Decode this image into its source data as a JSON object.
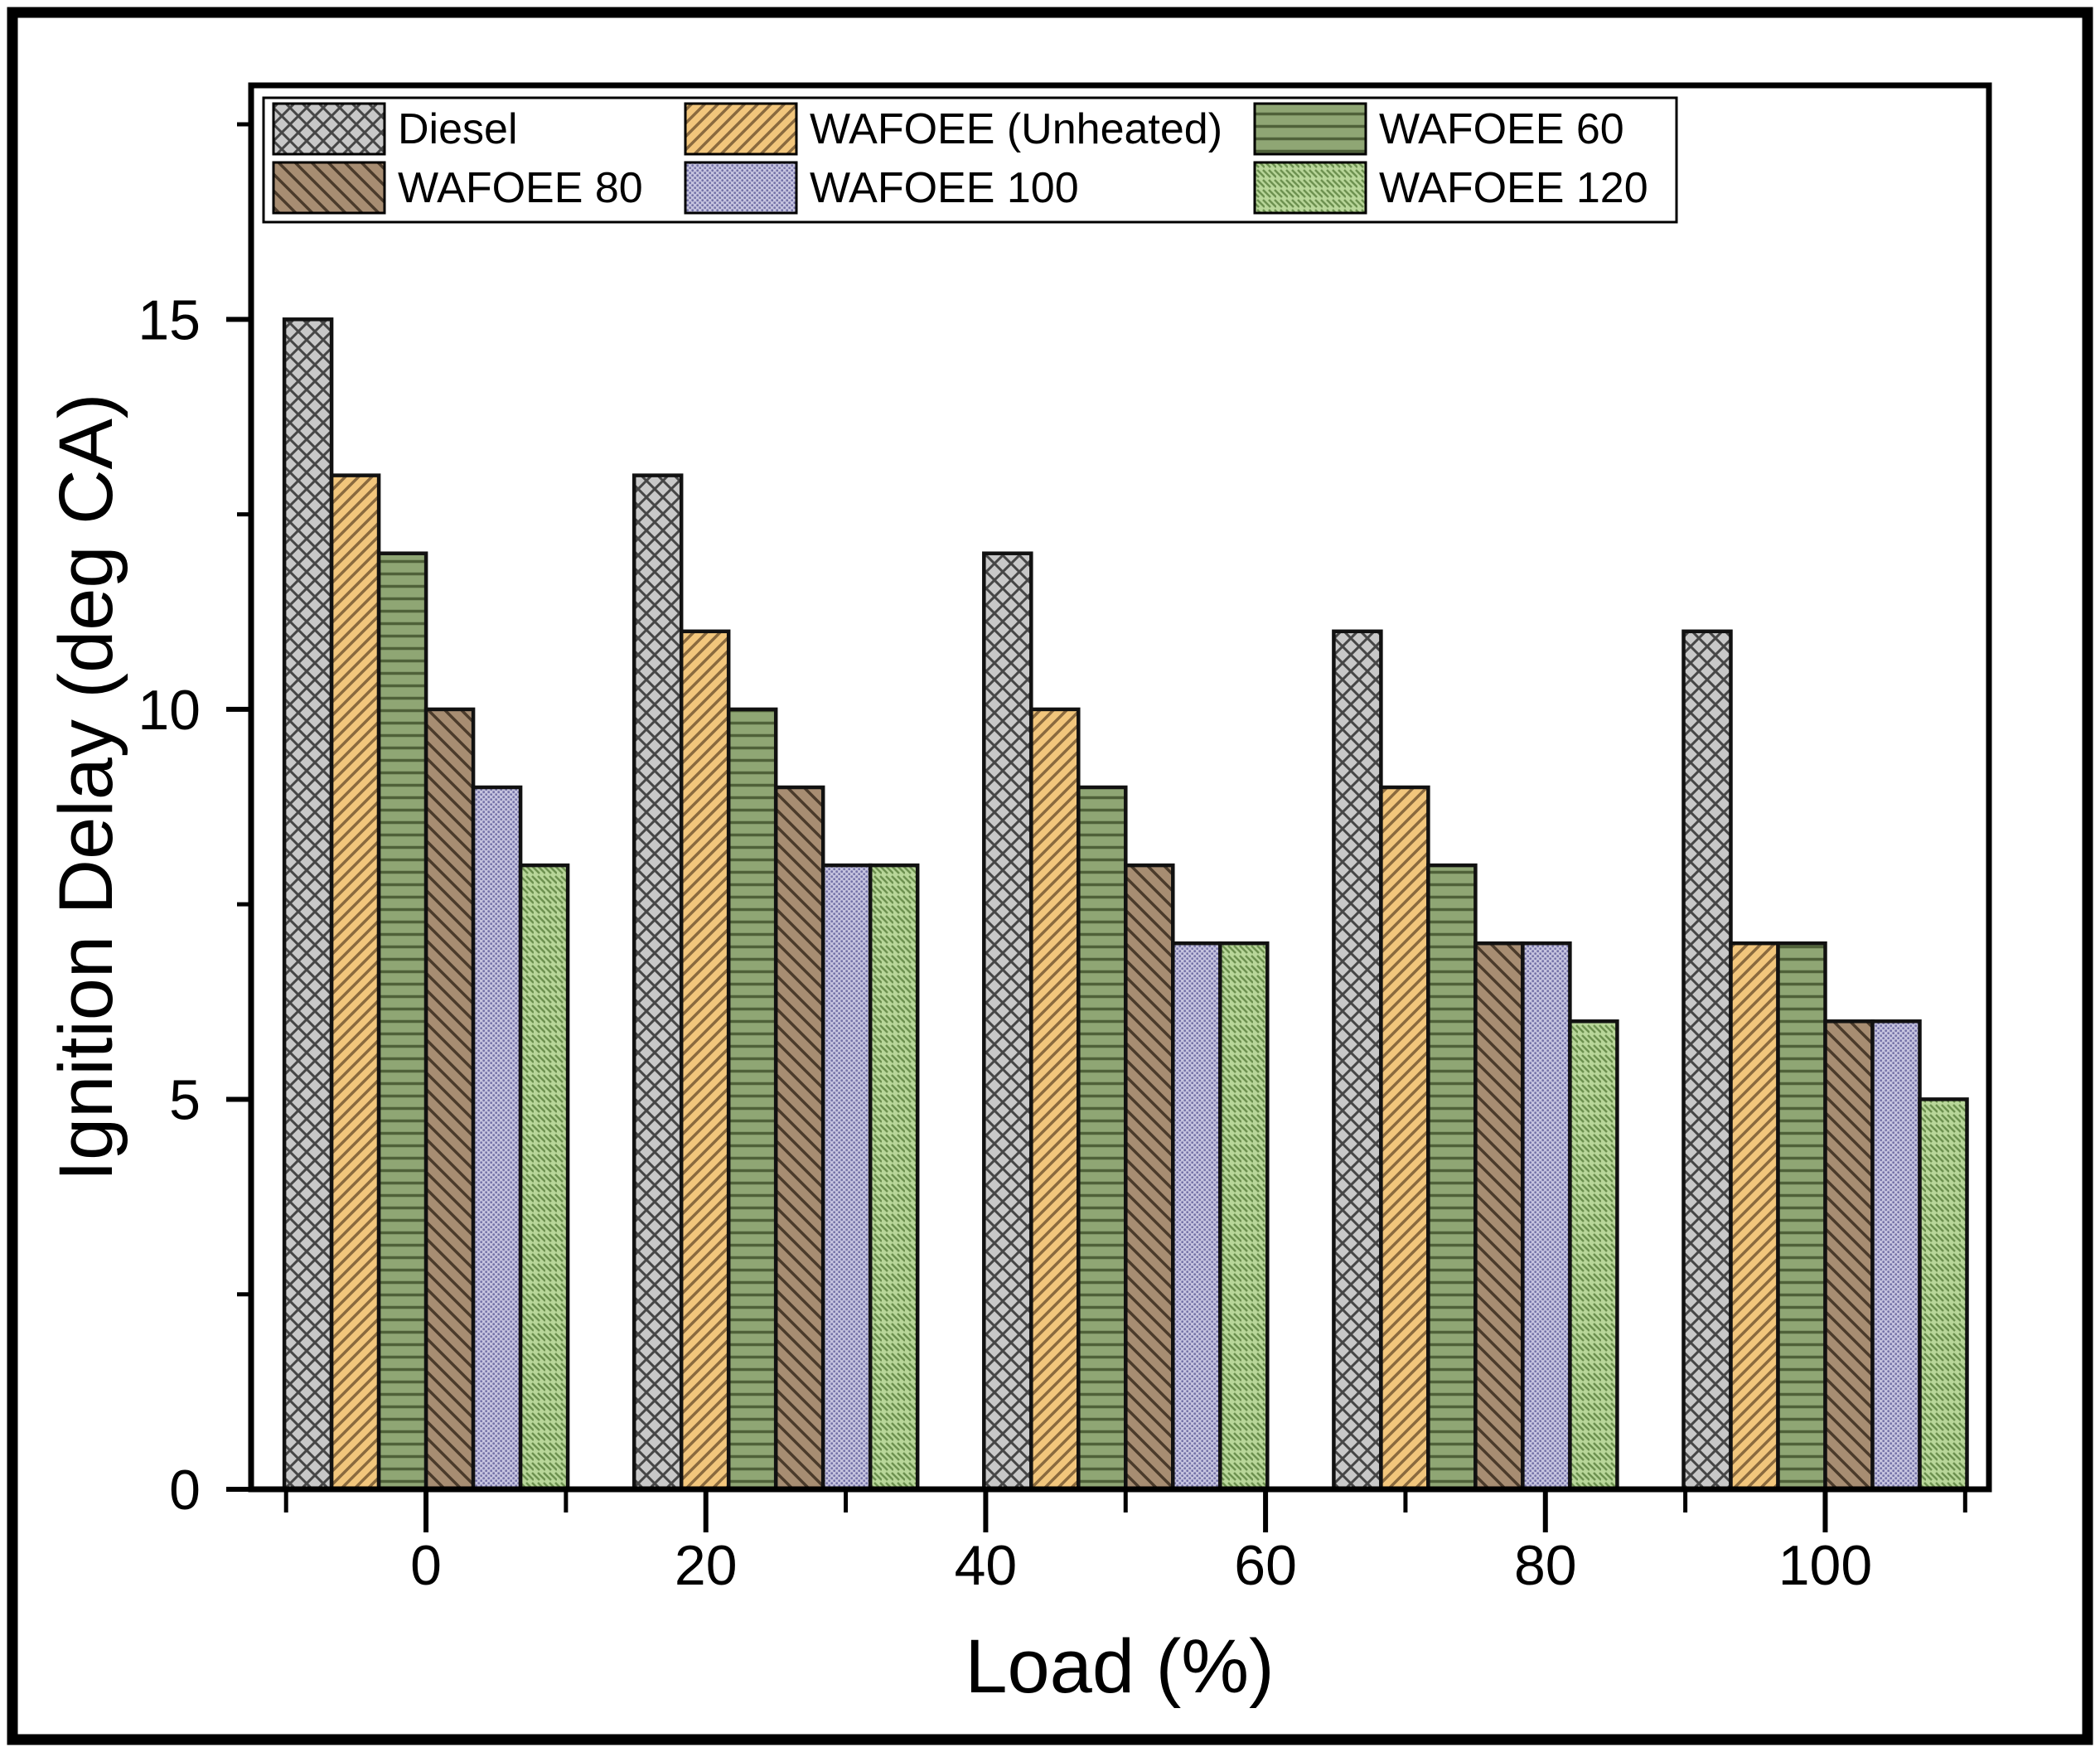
{
  "chart_data": {
    "type": "bar",
    "title": "",
    "xlabel": "Load (%)",
    "ylabel": "Ignition Delay (deg CA)",
    "categories": [
      0,
      25,
      50,
      75,
      100
    ],
    "x_tick_values": [
      0,
      20,
      40,
      60,
      80,
      100
    ],
    "x_tick_labels": [
      "0",
      "20",
      "40",
      "60",
      "80",
      "100"
    ],
    "x_minor_ticks": [
      -10,
      10,
      30,
      50,
      70,
      90,
      110
    ],
    "y_tick_values": [
      0,
      5,
      10,
      15
    ],
    "y_tick_labels": [
      "0",
      "5",
      "10",
      "15"
    ],
    "y_minor_ticks": [
      2.5,
      7.5,
      12.5,
      17.5
    ],
    "xlim": [
      -12.5,
      111.7
    ],
    "ylim": [
      0,
      18
    ],
    "grid": false,
    "legend_position": "top-inside",
    "legend_rows": 2,
    "legend_columns": 3,
    "axis_color": "#000000",
    "bar_outline_color": "#111111",
    "series": [
      {
        "name": "Diesel",
        "values": [
          15,
          13,
          12,
          11,
          11
        ],
        "fill": "#c8c8c8",
        "hatch_color": "#464646",
        "pattern": "crosshatch"
      },
      {
        "name": "WAFOEE (Unheated)",
        "values": [
          13,
          11,
          10,
          9,
          7
        ],
        "fill": "#f2c67c",
        "hatch_color": "#8a6a3e",
        "pattern": "diagonal-up"
      },
      {
        "name": "WAFOEE 60",
        "values": [
          12,
          10,
          9,
          8,
          7
        ],
        "fill": "#8fa674",
        "hatch_color": "#4f6139",
        "pattern": "horizontal"
      },
      {
        "name": "WAFOEE 80",
        "values": [
          10,
          9,
          8,
          7,
          6
        ],
        "fill": "#a78d72",
        "hatch_color": "#4b3b2b",
        "pattern": "diagonal-down"
      },
      {
        "name": "WAFOEE 100",
        "values": [
          9,
          8,
          7,
          7,
          6
        ],
        "fill": "#c6c4df",
        "hatch_color": "#7573a8",
        "pattern": "dots"
      },
      {
        "name": "WAFOEE 120",
        "values": [
          8,
          8,
          7,
          6,
          5
        ],
        "fill": "#b8d699",
        "hatch_color": "#6d9150",
        "pattern": "zigzag"
      }
    ]
  }
}
